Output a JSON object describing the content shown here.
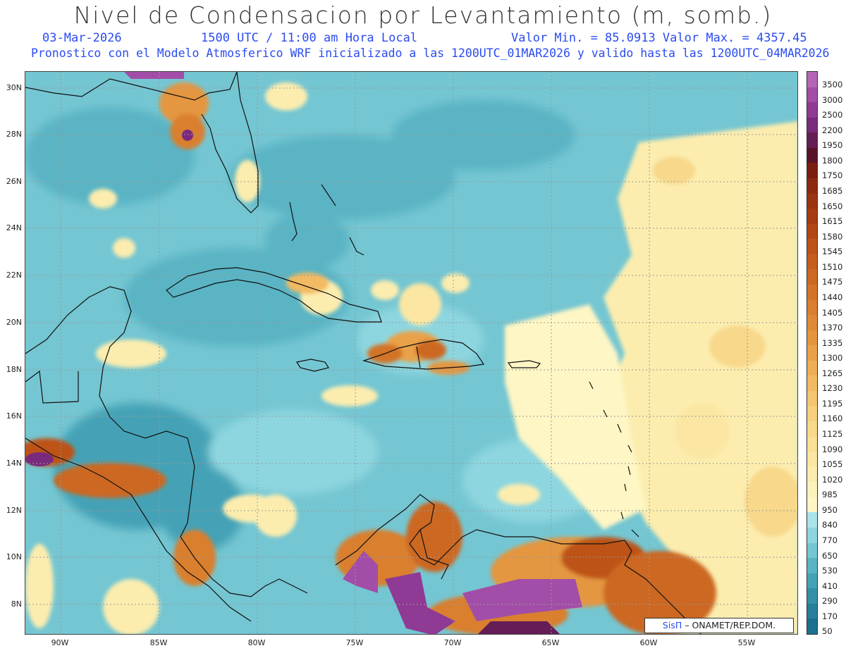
{
  "header": {
    "title": "Nivel de Condensacion por Levantamiento (m, somb.)",
    "date": "03-Mar-2026",
    "time": "1500 UTC / 11:00 am Hora Local",
    "minmax": "Valor Min. = 85.0913  Valor Max. = 4357.45",
    "info": "Pronostico con el Modelo Atmosferico WRF inicializado a las 1200UTC_01MAR2026 y valido hasta las  1200UTC_04MAR2026"
  },
  "map": {
    "lat_labels": [
      "30N",
      "28N",
      "26N",
      "24N",
      "22N",
      "20N",
      "18N",
      "16N",
      "14N",
      "12N",
      "10N",
      "8N"
    ],
    "lon_labels": [
      "90W",
      "85W",
      "80W",
      "75W",
      "70W",
      "65W",
      "60W",
      "55W"
    ],
    "region": "Caribe"
  },
  "legend": {
    "labels": [
      "3500",
      "3000",
      "2500",
      "2200",
      "1950",
      "1800",
      "1750",
      "1685",
      "1650",
      "1615",
      "1580",
      "1545",
      "1510",
      "1475",
      "1440",
      "1405",
      "1370",
      "1335",
      "1300",
      "1265",
      "1230",
      "1195",
      "1160",
      "1125",
      "1090",
      "1055",
      "1020",
      "985",
      "950",
      "840",
      "770",
      "650",
      "530",
      "410",
      "290",
      "170",
      "50"
    ],
    "colors": [
      "#b565b8",
      "#a24ea8",
      "#8f3a95",
      "#7a2a7c",
      "#651d55",
      "#5a1228",
      "#7a1e10",
      "#8d2a0e",
      "#9b3410",
      "#a63c12",
      "#b24715",
      "#bd5318",
      "#c55e1d",
      "#cc6822",
      "#d37328",
      "#d97f2f",
      "#df8a37",
      "#e4963f",
      "#e9a24a",
      "#eeae55",
      "#f2ba62",
      "#f5c56f",
      "#f7cf7d",
      "#f8d88a",
      "#fae096",
      "#fbe7a3",
      "#fcedaf",
      "#fdf2bb",
      "#fef6c4",
      "#a9e3ea",
      "#8ed6df",
      "#74c6d2",
      "#5ab4c4",
      "#44a2b6",
      "#3490a8",
      "#277f9b",
      "#1c6f8f"
    ]
  },
  "credit": {
    "sis": "SisΠ",
    "text": "ONAMET/REP.DOM."
  }
}
